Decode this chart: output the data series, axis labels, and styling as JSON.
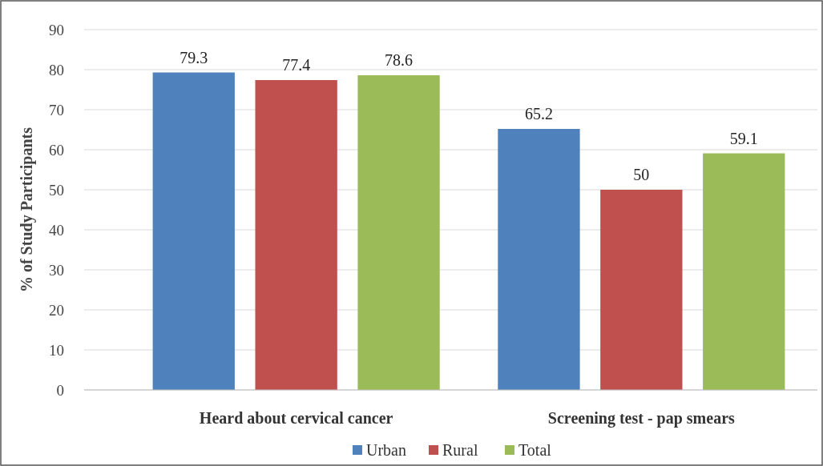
{
  "chart_data": {
    "type": "bar",
    "ylabel": "% of Study Participants",
    "categories": [
      "Heard about cervical cancer",
      "Screening test - pap smears"
    ],
    "series": [
      {
        "name": "Urban",
        "color": "#4f81bd",
        "values": [
          79.3,
          65.2
        ]
      },
      {
        "name": "Rural",
        "color": "#c0504d",
        "values": [
          77.4,
          50
        ]
      },
      {
        "name": "Total",
        "color": "#9bbb59",
        "values": [
          78.6,
          59.1
        ]
      }
    ],
    "ylim": [
      0,
      90
    ],
    "yticks": [
      0,
      10,
      20,
      30,
      40,
      50,
      60,
      70,
      80,
      90
    ],
    "grid": "y",
    "legend": "bottom",
    "data_labels": true
  }
}
